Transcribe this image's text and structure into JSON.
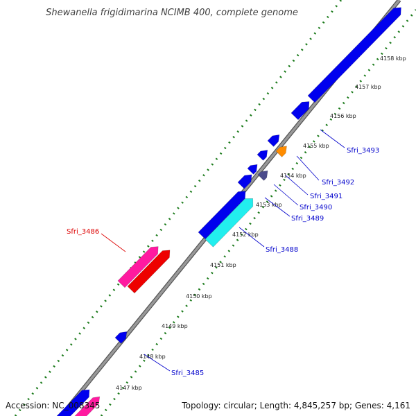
{
  "title": "Shewanella frigidimarina NCIMB 400, complete genome",
  "footer": {
    "accession": "Accession: NC_008345",
    "topology": "Topology: circular; Length: 4,845,257 bp; Genes: 4,161"
  },
  "colors": {
    "backbone": "#999999",
    "backbone_edge": "#555555",
    "dots": "#1a7a1a",
    "cds_blue": "#0000ee",
    "cds_red": "#ee0000",
    "cds_pink": "#ff1aa0",
    "cds_cyan": "#22eeee",
    "cds_orange": "#ff8c00",
    "cds_slate": "#4a4a8a",
    "label_blue": "#0000cc",
    "label_red": "#dd0000"
  },
  "ticks": [
    "4147 kbp",
    "4148 kbp",
    "4149 kbp",
    "4150 kbp",
    "4151 kbp",
    "4152 kbp",
    "4153 kbp",
    "4154 kbp",
    "4155 kbp",
    "4156 kbp",
    "4157 kbp",
    "4158 kbp"
  ],
  "gene_labels": [
    {
      "id": "Sfri_3493",
      "color_key": "label_blue"
    },
    {
      "id": "Sfri_3492",
      "color_key": "label_blue"
    },
    {
      "id": "Sfri_3491",
      "color_key": "label_blue"
    },
    {
      "id": "Sfri_3490",
      "color_key": "label_blue"
    },
    {
      "id": "Sfri_3489",
      "color_key": "label_blue"
    },
    {
      "id": "Sfri_3488",
      "color_key": "label_blue"
    },
    {
      "id": "Sfri_3486",
      "color_key": "label_red"
    },
    {
      "id": "Sfri_3485",
      "color_key": "label_blue"
    }
  ]
}
